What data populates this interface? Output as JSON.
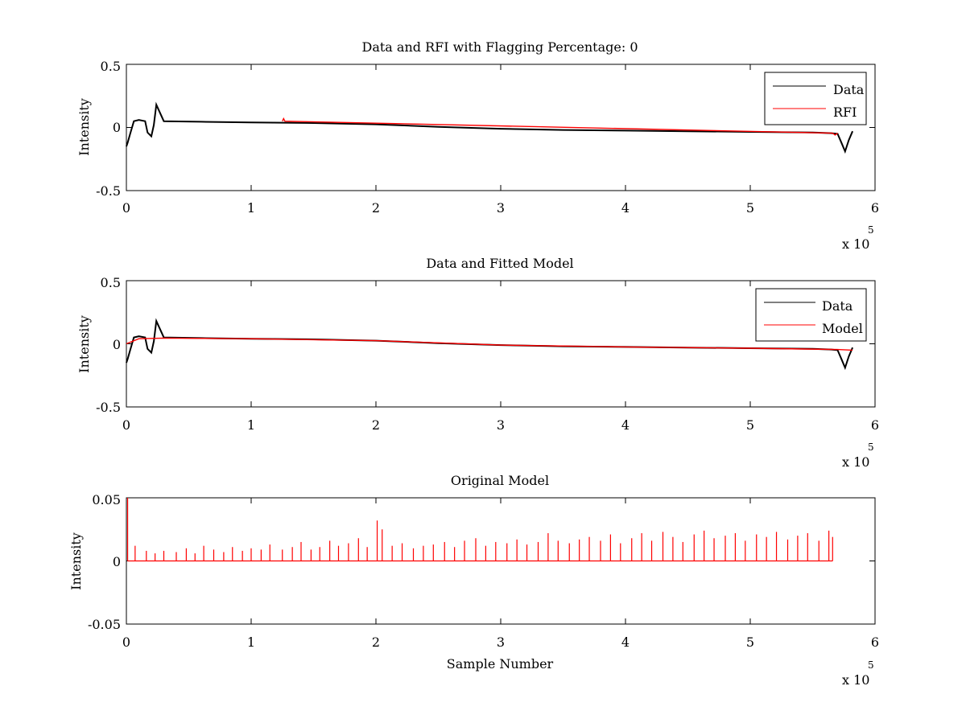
{
  "chart_data": [
    {
      "type": "line",
      "title": "Data and RFI with Flagging Percentage: 0",
      "xlabel": "",
      "ylabel": "Intensity",
      "xlim": [
        0,
        600000
      ],
      "ylim": [
        -0.5,
        0.5
      ],
      "xticks": [
        "0",
        "1",
        "2",
        "3",
        "4",
        "5",
        "6"
      ],
      "yticks": [
        "-0.5",
        "0",
        "0.5"
      ],
      "x_multiplier": {
        "base": "x 10",
        "exponent": "5"
      },
      "grid": false,
      "legend": {
        "placement": "top-right",
        "entries": [
          "Data",
          "RFI"
        ]
      },
      "series": [
        {
          "name": "Data",
          "color": "#000000",
          "x": [
            0,
            1000,
            3000,
            6000,
            10000,
            15000,
            17000,
            20000,
            22000,
            24000,
            30000,
            60000,
            100000,
            150000,
            200000,
            250000,
            300000,
            350000,
            400000,
            450000,
            500000,
            550000,
            565000,
            570000,
            573000,
            576000,
            579000,
            582000
          ],
          "y": [
            -0.15,
            -0.12,
            -0.05,
            0.05,
            0.06,
            0.05,
            -0.04,
            -0.07,
            0.02,
            0.18,
            0.05,
            0.045,
            0.04,
            0.035,
            0.025,
            0.005,
            -0.01,
            -0.02,
            -0.025,
            -0.03,
            -0.035,
            -0.04,
            -0.045,
            -0.05,
            -0.12,
            -0.19,
            -0.1,
            -0.03
          ]
        },
        {
          "name": "RFI",
          "color": "#ff0000",
          "x": [
            125000,
            126000,
            127000,
            566000,
            568000,
            570000
          ],
          "y": [
            0.05,
            0.07,
            0.05,
            -0.045,
            -0.06,
            -0.045
          ]
        }
      ]
    },
    {
      "type": "line",
      "title": "Data and Fitted Model",
      "xlabel": "",
      "ylabel": "Intensity",
      "xlim": [
        0,
        600000
      ],
      "ylim": [
        -0.5,
        0.5
      ],
      "xticks": [
        "0",
        "1",
        "2",
        "3",
        "4",
        "5",
        "6"
      ],
      "yticks": [
        "-0.5",
        "0",
        "0.5"
      ],
      "x_multiplier": {
        "base": "x 10",
        "exponent": "5"
      },
      "grid": false,
      "legend": {
        "placement": "top-right",
        "entries": [
          "Data",
          "Model"
        ]
      },
      "series": [
        {
          "name": "Data",
          "color": "#000000",
          "x": [
            0,
            1000,
            3000,
            6000,
            10000,
            15000,
            17000,
            20000,
            22000,
            24000,
            30000,
            60000,
            100000,
            150000,
            200000,
            250000,
            300000,
            350000,
            400000,
            450000,
            500000,
            550000,
            565000,
            570000,
            573000,
            576000,
            579000,
            582000
          ],
          "y": [
            -0.15,
            -0.12,
            -0.05,
            0.05,
            0.06,
            0.05,
            -0.04,
            -0.07,
            0.02,
            0.18,
            0.05,
            0.045,
            0.04,
            0.035,
            0.025,
            0.005,
            -0.01,
            -0.02,
            -0.025,
            -0.03,
            -0.035,
            -0.04,
            -0.045,
            -0.05,
            -0.12,
            -0.19,
            -0.1,
            -0.03
          ]
        },
        {
          "name": "Model",
          "color": "#ff0000",
          "x": [
            0,
            10000,
            30000,
            100000,
            200000,
            300000,
            400000,
            500000,
            570000,
            582000
          ],
          "y": [
            0.0,
            0.04,
            0.045,
            0.04,
            0.025,
            -0.01,
            -0.025,
            -0.035,
            -0.045,
            -0.05
          ]
        }
      ]
    },
    {
      "type": "line",
      "title": "Original Model",
      "xlabel": "Sample Number",
      "ylabel": "Intensity",
      "xlim": [
        0,
        600000
      ],
      "ylim": [
        -0.05,
        0.05
      ],
      "xticks": [
        "0",
        "1",
        "2",
        "3",
        "4",
        "5",
        "6"
      ],
      "yticks": [
        "-0.05",
        "0",
        "0.05"
      ],
      "x_multiplier": {
        "base": "x 10",
        "exponent": "5"
      },
      "grid": false,
      "series": [
        {
          "color": "#ff0000",
          "x": [
            1000,
            7000,
            16000,
            23000,
            30000,
            40000,
            48000,
            55000,
            62000,
            70000,
            78000,
            85000,
            93000,
            100000,
            108000,
            115000,
            125000,
            133000,
            140000,
            148000,
            155000,
            163000,
            170000,
            178000,
            186000,
            193000,
            201000,
            205000,
            213000,
            221000,
            230000,
            238000,
            246000,
            255000,
            263000,
            271000,
            280000,
            288000,
            296000,
            305000,
            313000,
            321000,
            330000,
            338000,
            346000,
            355000,
            363000,
            371000,
            380000,
            388000,
            396000,
            405000,
            413000,
            421000,
            430000,
            438000,
            446000,
            455000,
            463000,
            471000,
            480000,
            488000,
            496000,
            505000,
            513000,
            521000,
            530000,
            538000,
            546000,
            555000,
            563000,
            566000
          ],
          "y": [
            0.05,
            0.012,
            0.008,
            0.006,
            0.008,
            0.007,
            0.01,
            0.006,
            0.012,
            0.009,
            0.007,
            0.011,
            0.008,
            0.01,
            0.009,
            0.013,
            0.009,
            0.011,
            0.015,
            0.009,
            0.011,
            0.016,
            0.012,
            0.014,
            0.018,
            0.011,
            0.032,
            0.025,
            0.012,
            0.014,
            0.01,
            0.012,
            0.013,
            0.015,
            0.011,
            0.016,
            0.018,
            0.012,
            0.015,
            0.014,
            0.017,
            0.013,
            0.015,
            0.022,
            0.016,
            0.014,
            0.017,
            0.019,
            0.016,
            0.021,
            0.014,
            0.018,
            0.022,
            0.016,
            0.023,
            0.019,
            0.015,
            0.021,
            0.024,
            0.018,
            0.02,
            0.022,
            0.016,
            0.021,
            0.019,
            0.023,
            0.017,
            0.02,
            0.022,
            0.016,
            0.024,
            0.019
          ]
        }
      ]
    }
  ]
}
